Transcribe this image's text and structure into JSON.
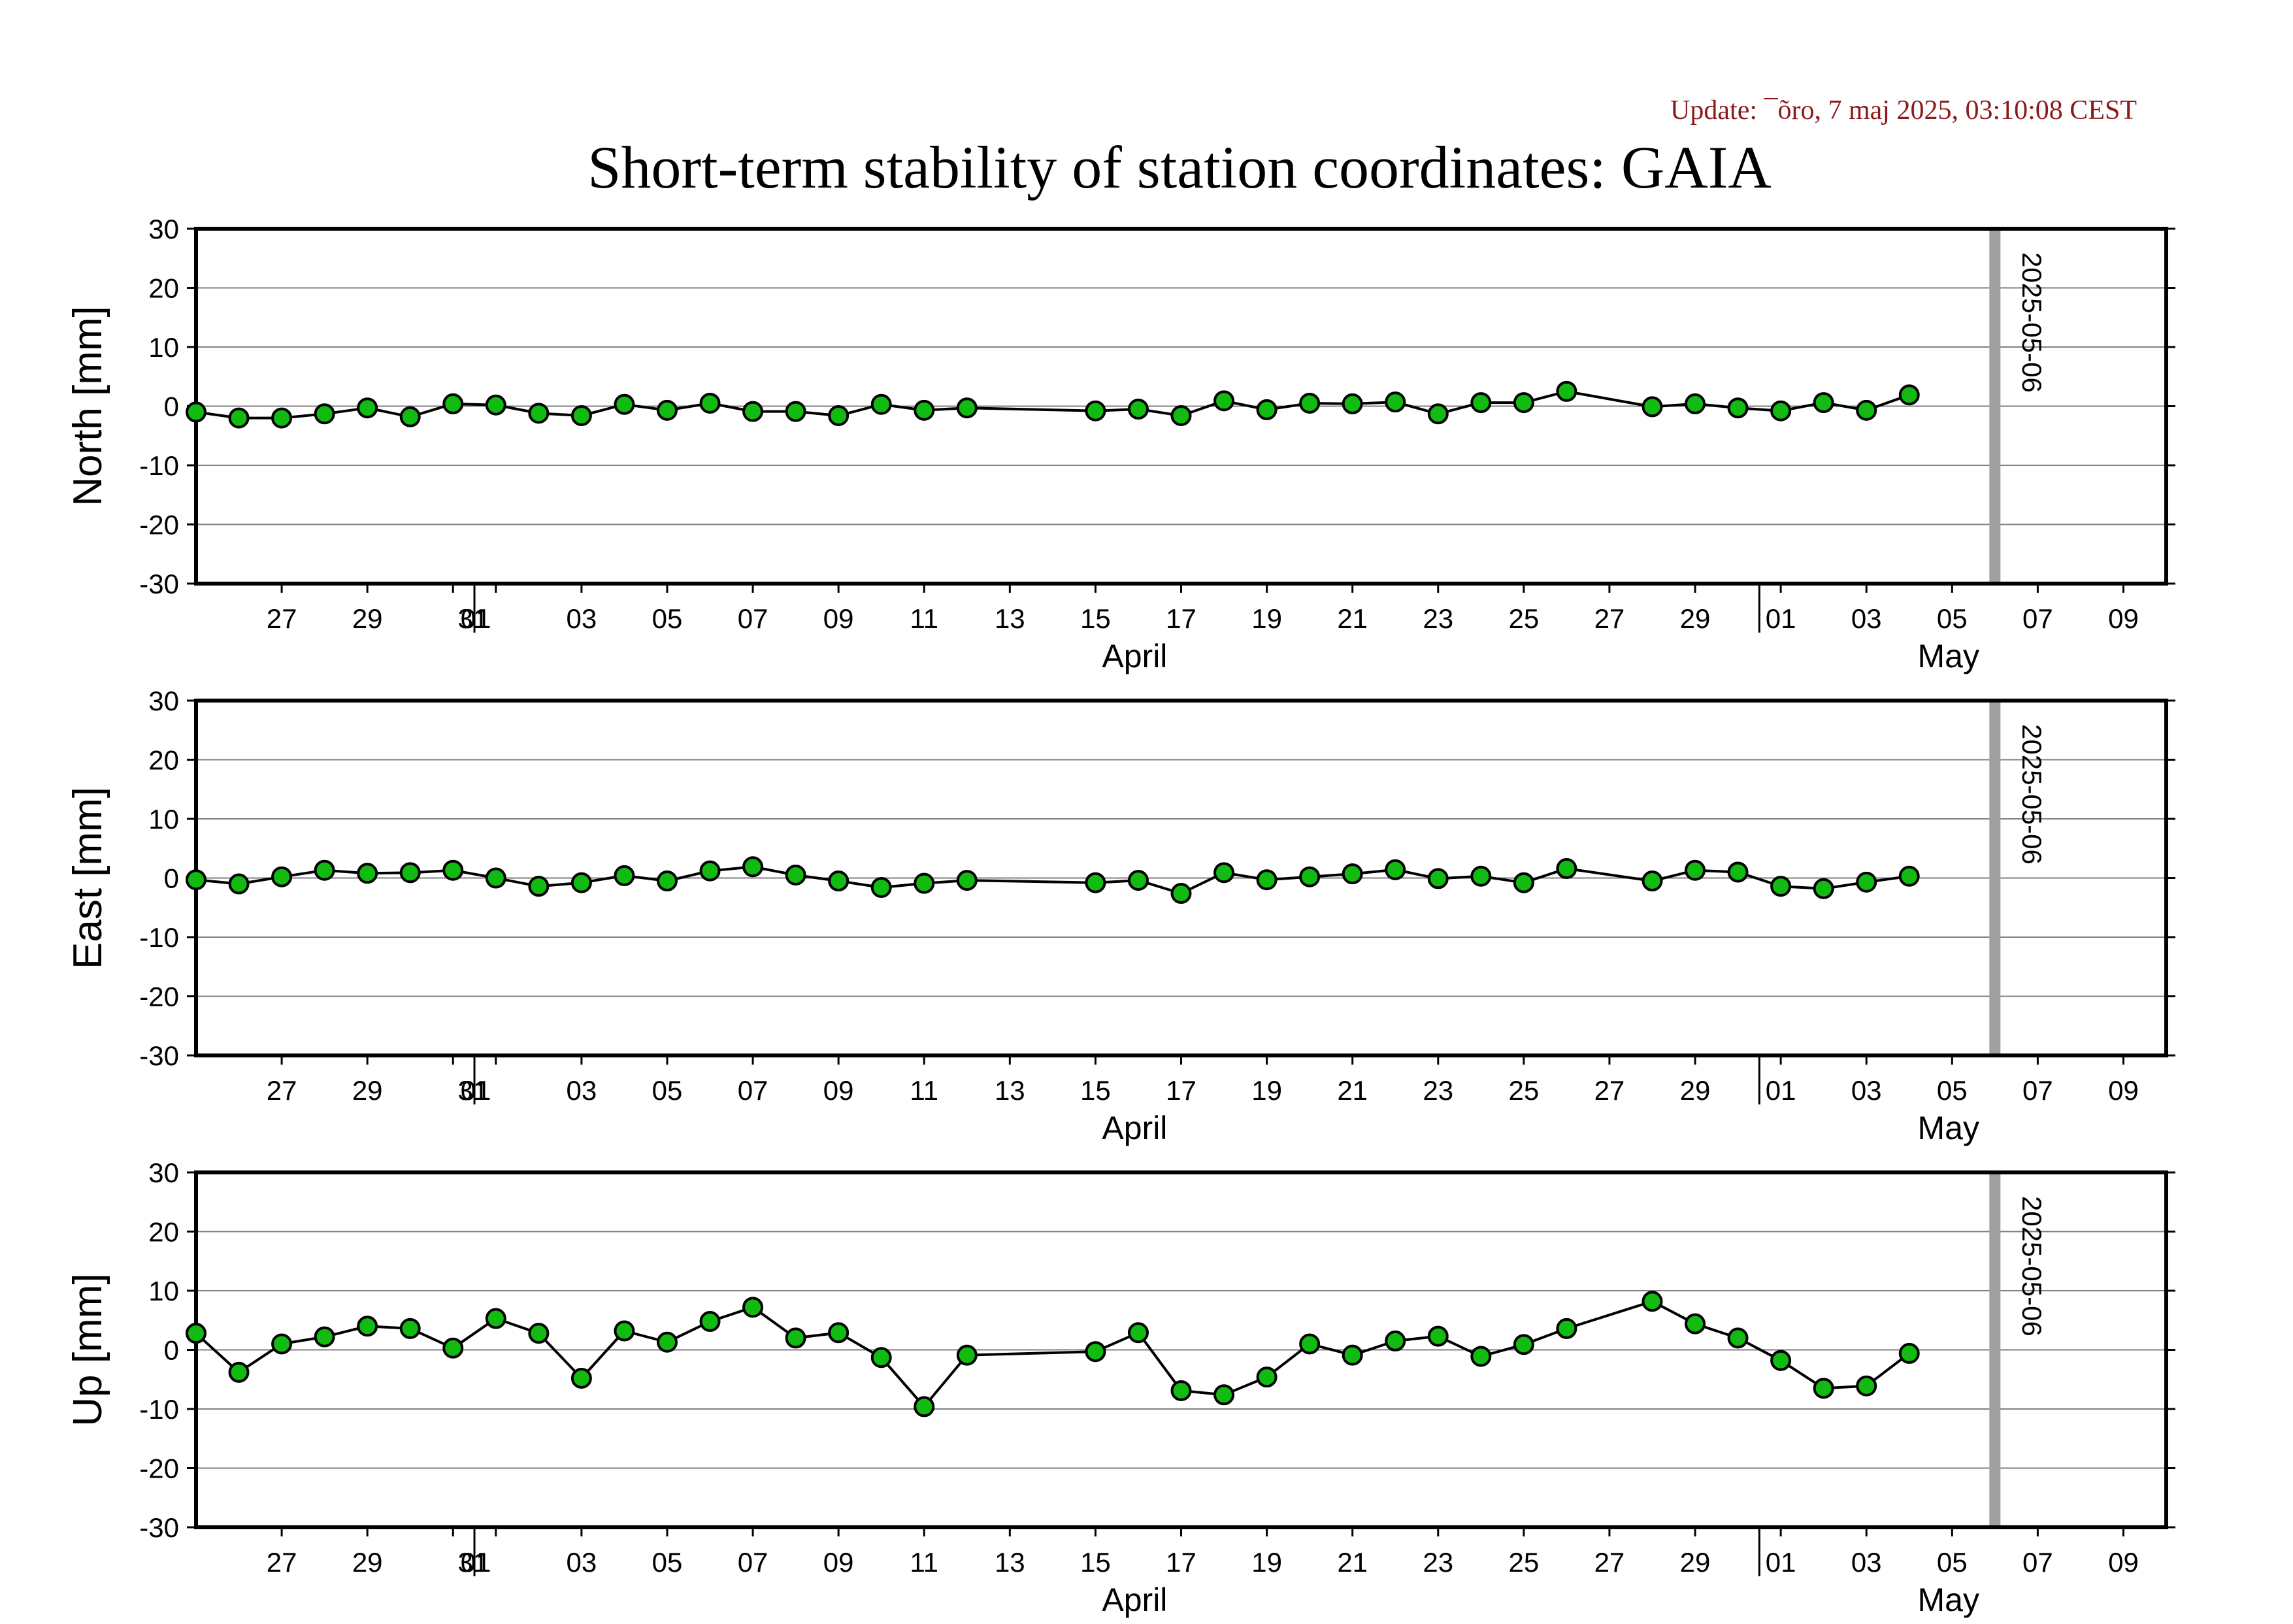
{
  "update_text": "Update: ¯õro, 7 maj 2025, 03:10:08 CEST",
  "title": "Short-term stability of station coordinates: GAIA",
  "colors": {
    "update_text": "#8b1a1a",
    "marker_fill": "#11bb11",
    "marker_stroke": "#000000",
    "line": "#000000",
    "grid": "#808080",
    "today_line": "#a0a0a0"
  },
  "x_axis": {
    "start": "2025-03-25",
    "end": "2025-05-10",
    "day_ticks": [
      {
        "date": "2025-03-27",
        "label": "27"
      },
      {
        "date": "2025-03-29",
        "label": "29"
      },
      {
        "date": "2025-03-31",
        "label": "31"
      },
      {
        "date": "2025-04-01",
        "label": "01"
      },
      {
        "date": "2025-04-03",
        "label": "03"
      },
      {
        "date": "2025-04-05",
        "label": "05"
      },
      {
        "date": "2025-04-07",
        "label": "07"
      },
      {
        "date": "2025-04-09",
        "label": "09"
      },
      {
        "date": "2025-04-11",
        "label": "11"
      },
      {
        "date": "2025-04-13",
        "label": "13"
      },
      {
        "date": "2025-04-15",
        "label": "15"
      },
      {
        "date": "2025-04-17",
        "label": "17"
      },
      {
        "date": "2025-04-19",
        "label": "19"
      },
      {
        "date": "2025-04-21",
        "label": "21"
      },
      {
        "date": "2025-04-23",
        "label": "23"
      },
      {
        "date": "2025-04-25",
        "label": "25"
      },
      {
        "date": "2025-04-27",
        "label": "27"
      },
      {
        "date": "2025-04-29",
        "label": "29"
      },
      {
        "date": "2025-05-01",
        "label": "01"
      },
      {
        "date": "2025-05-03",
        "label": "03"
      },
      {
        "date": "2025-05-05",
        "label": "05"
      },
      {
        "date": "2025-05-07",
        "label": "07"
      },
      {
        "date": "2025-05-09",
        "label": "09"
      }
    ],
    "month_boundaries": [
      "2025-04-01",
      "2025-05-01"
    ],
    "month_labels": [
      {
        "date": "2025-04-15",
        "label": "April"
      },
      {
        "date": "2025-05-04",
        "label": "May"
      }
    ]
  },
  "chart_data": [
    {
      "type": "line",
      "ylabel": "North [mm]",
      "ylim": [
        -30,
        30
      ],
      "yticks": [
        30,
        20,
        10,
        0,
        -10,
        -20,
        -30
      ],
      "grid": true,
      "today_marker": {
        "date": "2025-05-06",
        "label": "2025-05-06"
      },
      "x": [
        "2025-03-25",
        "2025-03-26",
        "2025-03-27",
        "2025-03-28",
        "2025-03-29",
        "2025-03-30",
        "2025-03-31",
        "2025-04-01",
        "2025-04-02",
        "2025-04-03",
        "2025-04-04",
        "2025-04-05",
        "2025-04-06",
        "2025-04-07",
        "2025-04-08",
        "2025-04-09",
        "2025-04-10",
        "2025-04-11",
        "2025-04-12",
        "2025-04-15",
        "2025-04-16",
        "2025-04-17",
        "2025-04-18",
        "2025-04-19",
        "2025-04-20",
        "2025-04-21",
        "2025-04-22",
        "2025-04-23",
        "2025-04-24",
        "2025-04-25",
        "2025-04-26",
        "2025-04-28",
        "2025-04-29",
        "2025-04-30",
        "2025-05-01",
        "2025-05-02",
        "2025-05-03",
        "2025-05-04"
      ],
      "y": [
        -1.0,
        -2.0,
        -2.0,
        -1.3,
        -0.3,
        -1.8,
        0.4,
        0.2,
        -1.2,
        -1.6,
        0.3,
        -0.7,
        0.5,
        -0.9,
        -0.9,
        -1.6,
        0.3,
        -0.7,
        -0.3,
        -0.8,
        -0.5,
        -1.6,
        0.9,
        -0.6,
        0.5,
        0.4,
        0.7,
        -1.3,
        0.6,
        0.6,
        2.5,
        -0.1,
        0.4,
        -0.3,
        -0.8,
        0.6,
        -0.7,
        1.9
      ]
    },
    {
      "type": "line",
      "ylabel": "East [mm]",
      "ylim": [
        -30,
        30
      ],
      "yticks": [
        30,
        20,
        10,
        0,
        -10,
        -20,
        -30
      ],
      "grid": true,
      "today_marker": {
        "date": "2025-05-06",
        "label": "2025-05-06"
      },
      "x": [
        "2025-03-25",
        "2025-03-26",
        "2025-03-27",
        "2025-03-28",
        "2025-03-29",
        "2025-03-30",
        "2025-03-31",
        "2025-04-01",
        "2025-04-02",
        "2025-04-03",
        "2025-04-04",
        "2025-04-05",
        "2025-04-06",
        "2025-04-07",
        "2025-04-08",
        "2025-04-09",
        "2025-04-10",
        "2025-04-11",
        "2025-04-12",
        "2025-04-15",
        "2025-04-16",
        "2025-04-17",
        "2025-04-18",
        "2025-04-19",
        "2025-04-20",
        "2025-04-21",
        "2025-04-22",
        "2025-04-23",
        "2025-04-24",
        "2025-04-25",
        "2025-04-26",
        "2025-04-28",
        "2025-04-29",
        "2025-04-30",
        "2025-05-01",
        "2025-05-02",
        "2025-05-03",
        "2025-05-04"
      ],
      "y": [
        -0.3,
        -1.0,
        0.2,
        1.3,
        0.8,
        0.9,
        1.3,
        0.0,
        -1.4,
        -0.8,
        0.4,
        -0.5,
        1.2,
        1.9,
        0.5,
        -0.5,
        -1.6,
        -0.9,
        -0.4,
        -0.8,
        -0.4,
        -2.6,
        0.9,
        -0.3,
        0.2,
        0.7,
        1.4,
        -0.1,
        0.3,
        -0.8,
        1.6,
        -0.5,
        1.3,
        1.0,
        -1.4,
        -1.8,
        -0.7,
        0.3
      ]
    },
    {
      "type": "line",
      "ylabel": "Up [mm]",
      "ylim": [
        -30,
        30
      ],
      "yticks": [
        30,
        20,
        10,
        0,
        -10,
        -20,
        -30
      ],
      "grid": true,
      "today_marker": {
        "date": "2025-05-06",
        "label": "2025-05-06"
      },
      "x": [
        "2025-03-25",
        "2025-03-26",
        "2025-03-27",
        "2025-03-28",
        "2025-03-29",
        "2025-03-30",
        "2025-03-31",
        "2025-04-01",
        "2025-04-02",
        "2025-04-03",
        "2025-04-04",
        "2025-04-05",
        "2025-04-06",
        "2025-04-07",
        "2025-04-08",
        "2025-04-09",
        "2025-04-10",
        "2025-04-11",
        "2025-04-12",
        "2025-04-15",
        "2025-04-16",
        "2025-04-17",
        "2025-04-18",
        "2025-04-19",
        "2025-04-20",
        "2025-04-21",
        "2025-04-22",
        "2025-04-23",
        "2025-04-24",
        "2025-04-25",
        "2025-04-26",
        "2025-04-28",
        "2025-04-29",
        "2025-04-30",
        "2025-05-01",
        "2025-05-02",
        "2025-05-03",
        "2025-05-04"
      ],
      "y": [
        2.8,
        -3.8,
        1.0,
        2.2,
        4.0,
        3.6,
        0.3,
        5.3,
        2.8,
        -4.8,
        3.2,
        1.3,
        4.8,
        7.2,
        2.0,
        2.9,
        -1.3,
        -9.6,
        -0.9,
        -0.3,
        2.9,
        -6.9,
        -7.6,
        -4.6,
        1.0,
        -0.9,
        1.5,
        2.3,
        -1.1,
        0.9,
        3.6,
        8.2,
        4.4,
        2.0,
        -1.8,
        -6.5,
        -6.1,
        -0.6
      ]
    }
  ]
}
